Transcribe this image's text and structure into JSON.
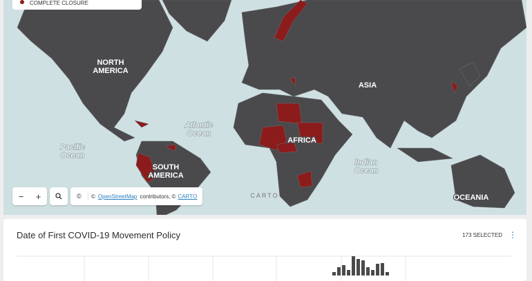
{
  "legend": {
    "items": [
      "COMPLETE CLOSURE"
    ],
    "color": "#8c1c1c"
  },
  "map": {
    "labels": [
      {
        "lines": [
          "NORTH",
          "AMERICA"
        ],
        "kind": "continent"
      },
      {
        "lines": [
          "SOUTH",
          "AMERICA"
        ],
        "kind": "continent"
      },
      {
        "lines": [
          "AFRICA"
        ],
        "kind": "continent"
      },
      {
        "lines": [
          "ASIA"
        ],
        "kind": "continent"
      },
      {
        "lines": [
          "OCEANIA"
        ],
        "kind": "continent"
      },
      {
        "lines": [
          "Atlantic",
          "Ocean"
        ],
        "kind": "ocean"
      },
      {
        "lines": [
          "Pacific",
          "Ocean"
        ],
        "kind": "ocean"
      },
      {
        "lines": [
          "Indian",
          "Ocean"
        ],
        "kind": "ocean"
      }
    ],
    "watermark": "CARTO",
    "controls": {
      "zoom_out": "−",
      "zoom_in": "+",
      "info": "©"
    },
    "attribution": {
      "prefix": "©",
      "link1": "OpenStreetMap",
      "middle": "contributors, ©",
      "link2": "CARTO"
    }
  },
  "panel": {
    "title": "Date of First COVID-19 Movement Policy",
    "selected": "173 SELECTED",
    "histogram": {
      "values": [
        5,
        12,
        15,
        8,
        28,
        24,
        22,
        12,
        8,
        17,
        18,
        5
      ],
      "ylim": [
        0,
        40
      ],
      "color": "#4a4a4d"
    }
  }
}
